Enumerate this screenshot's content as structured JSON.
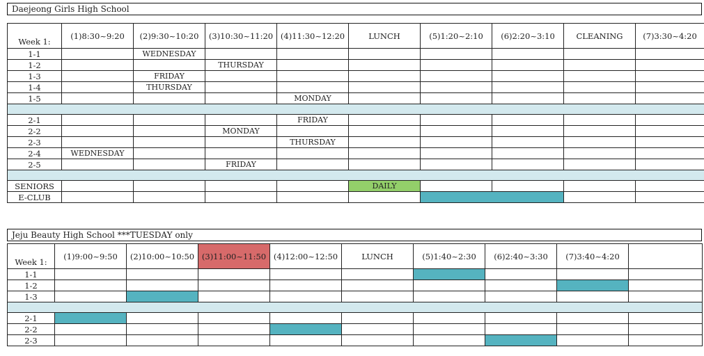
{
  "colors": {
    "separator": "#d3e9ee",
    "daily_green": "#93cf6a",
    "teal_block": "#55b3c0",
    "highlight_red": "#d76a6a"
  },
  "school1": {
    "title": "Daejeong Girls High School",
    "week_label": "Week 1:",
    "periods": [
      "(1)8:30~9:20",
      "(2)9:30~10:20",
      "(3)10:30~11:20",
      "(4)11:30~12:20",
      "LUNCH",
      "(5)1:20~2:10",
      "(6)2:20~3:10",
      "CLEANING",
      "(7)3:30~4:20"
    ],
    "rows_g1": [
      {
        "label": "1-1",
        "cells": [
          "",
          "WEDNESDAY",
          "",
          "",
          "",
          "",
          "",
          "",
          ""
        ]
      },
      {
        "label": "1-2",
        "cells": [
          "",
          "",
          "THURSDAY",
          "",
          "",
          "",
          "",
          "",
          ""
        ]
      },
      {
        "label": "1-3",
        "cells": [
          "",
          "FRIDAY",
          "",
          "",
          "",
          "",
          "",
          "",
          ""
        ]
      },
      {
        "label": "1-4",
        "cells": [
          "",
          "THURSDAY",
          "",
          "",
          "",
          "",
          "",
          "",
          ""
        ]
      },
      {
        "label": "1-5",
        "cells": [
          "",
          "",
          "",
          "MONDAY",
          "",
          "",
          "",
          "",
          ""
        ]
      }
    ],
    "rows_g2": [
      {
        "label": "2-1",
        "cells": [
          "",
          "",
          "",
          "FRIDAY",
          "",
          "",
          "",
          "",
          ""
        ]
      },
      {
        "label": "2-2",
        "cells": [
          "",
          "",
          "MONDAY",
          "",
          "",
          "",
          "",
          "",
          ""
        ]
      },
      {
        "label": "2-3",
        "cells": [
          "",
          "",
          "",
          "THURSDAY",
          "",
          "",
          "",
          "",
          ""
        ]
      },
      {
        "label": "2-4",
        "cells": [
          "WEDNESDAY",
          "",
          "",
          "",
          "",
          "",
          "",
          "",
          ""
        ]
      },
      {
        "label": "2-5",
        "cells": [
          "",
          "",
          "FRIDAY",
          "",
          "",
          "",
          "",
          "",
          ""
        ]
      }
    ],
    "seniors": {
      "label": "SENIORS",
      "daily": "DAILY"
    },
    "eclub": {
      "label": "E-CLUB"
    }
  },
  "school2": {
    "title": "Jeju Beauty High School    ***TUESDAY only",
    "week_label": "Week 1:",
    "periods": [
      "(1)9:00~9:50",
      "(2)10:00~10:50",
      "(3)11:00~11:50",
      "(4)12:00~12:50",
      "LUNCH",
      "(5)1:40~2:30",
      "(6)2:40~3:30",
      "(7)3:40~4:20",
      ""
    ],
    "rows_g1": [
      {
        "label": "1-1"
      },
      {
        "label": "1-2"
      },
      {
        "label": "1-3"
      }
    ],
    "rows_g2": [
      {
        "label": "2-1"
      },
      {
        "label": "2-2"
      },
      {
        "label": "2-3"
      }
    ]
  }
}
